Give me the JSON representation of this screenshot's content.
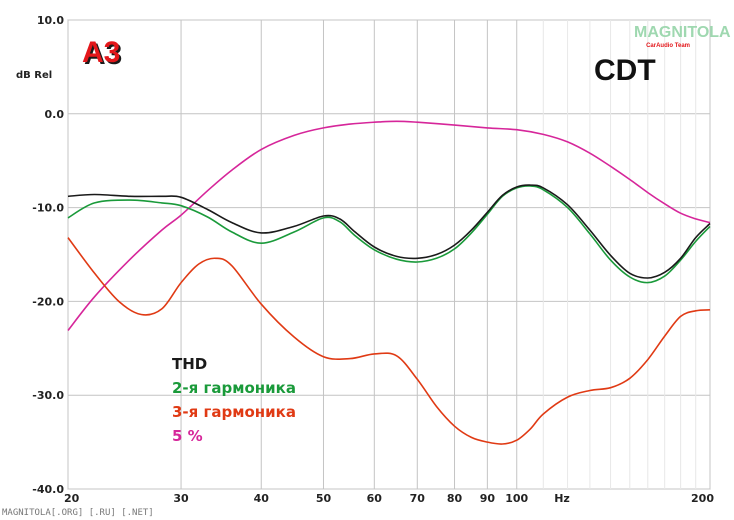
{
  "chart_data": {
    "type": "line",
    "xscale": "log",
    "xlim": [
      20,
      200
    ],
    "ylim": [
      -40,
      10
    ],
    "ylabel": "dB Rel",
    "xunit": "Hz",
    "grid": true,
    "x_ticks": [
      20,
      30,
      40,
      50,
      60,
      70,
      80,
      90,
      100,
      200
    ],
    "y_ticks": [
      "10.0",
      "0.0",
      "-10.0",
      "-20.0",
      "-30.0",
      "-40.0"
    ],
    "x_tick_labels": [
      "20",
      "30",
      "40",
      "50",
      "60",
      "70",
      "80",
      "90",
      "100",
      "200"
    ],
    "series": [
      {
        "name": "THD",
        "color": "#1a1a1a",
        "x": [
          20,
          22,
          25,
          28,
          30,
          33,
          36,
          40,
          45,
          50,
          53,
          56,
          60,
          65,
          70,
          75,
          80,
          85,
          90,
          95,
          100,
          105,
          110,
          120,
          130,
          140,
          150,
          160,
          170,
          180,
          190,
          200
        ],
        "y": [
          -8.8,
          -8.6,
          -8.8,
          -8.8,
          -8.9,
          -10.2,
          -11.6,
          -12.7,
          -12.0,
          -10.9,
          -11.2,
          -12.6,
          -14.2,
          -15.2,
          -15.4,
          -15.0,
          -14.0,
          -12.4,
          -10.5,
          -8.7,
          -7.8,
          -7.6,
          -7.9,
          -9.7,
          -12.4,
          -15.1,
          -17.0,
          -17.5,
          -16.9,
          -15.4,
          -13.2,
          -11.7
        ]
      },
      {
        "name": "2-я гармоника",
        "color": "#1a9a3a",
        "x": [
          20,
          22,
          25,
          28,
          30,
          33,
          36,
          40,
          45,
          50,
          53,
          56,
          60,
          65,
          70,
          75,
          80,
          85,
          90,
          95,
          100,
          105,
          110,
          120,
          130,
          140,
          150,
          160,
          170,
          180,
          190,
          200
        ],
        "y": [
          -11.1,
          -9.5,
          -9.2,
          -9.5,
          -9.8,
          -11.0,
          -12.6,
          -13.8,
          -12.6,
          -11.1,
          -11.5,
          -13.0,
          -14.5,
          -15.5,
          -15.8,
          -15.4,
          -14.4,
          -12.7,
          -10.7,
          -8.8,
          -7.9,
          -7.7,
          -8.1,
          -10.0,
          -12.8,
          -15.6,
          -17.4,
          -18.0,
          -17.3,
          -15.6,
          -13.6,
          -12.0
        ]
      },
      {
        "name": "3-я гармоника",
        "color": "#e03a14",
        "x": [
          20,
          22,
          24,
          26,
          28,
          30,
          32,
          34,
          36,
          40,
          45,
          50,
          55,
          60,
          65,
          70,
          75,
          80,
          85,
          90,
          95,
          100,
          105,
          110,
          120,
          130,
          140,
          150,
          160,
          170,
          180,
          190,
          200
        ],
        "y": [
          -13.2,
          -17.0,
          -20.0,
          -21.4,
          -20.8,
          -18.0,
          -16.0,
          -15.4,
          -16.2,
          -20.3,
          -23.8,
          -25.9,
          -26.1,
          -25.6,
          -25.8,
          -28.3,
          -31.2,
          -33.3,
          -34.5,
          -35.0,
          -35.2,
          -34.8,
          -33.6,
          -32.0,
          -30.2,
          -29.5,
          -29.2,
          -28.2,
          -26.2,
          -23.7,
          -21.6,
          -21.0,
          -20.9
        ]
      },
      {
        "name": "5 %",
        "color": "#d6269a",
        "x": [
          20,
          22,
          25,
          28,
          30,
          33,
          36,
          40,
          45,
          50,
          55,
          60,
          65,
          70,
          80,
          90,
          100,
          110,
          120,
          130,
          140,
          150,
          160,
          170,
          180,
          190,
          200
        ],
        "y": [
          -23.1,
          -19.5,
          -15.5,
          -12.4,
          -10.8,
          -8.2,
          -6.0,
          -3.8,
          -2.3,
          -1.5,
          -1.1,
          -0.9,
          -0.8,
          -0.9,
          -1.2,
          -1.5,
          -1.7,
          -2.2,
          -3.0,
          -4.2,
          -5.6,
          -7.0,
          -8.4,
          -9.6,
          -10.6,
          -11.2,
          -11.6
        ]
      }
    ]
  },
  "labels": {
    "big_title": "CDT",
    "logo_text": "A3",
    "brand_top": "MAGNITOLA",
    "brand_bottom": "CarAudio Team",
    "watermark": "MAGNITOLA[.ORG] [.RU] [.NET]"
  }
}
